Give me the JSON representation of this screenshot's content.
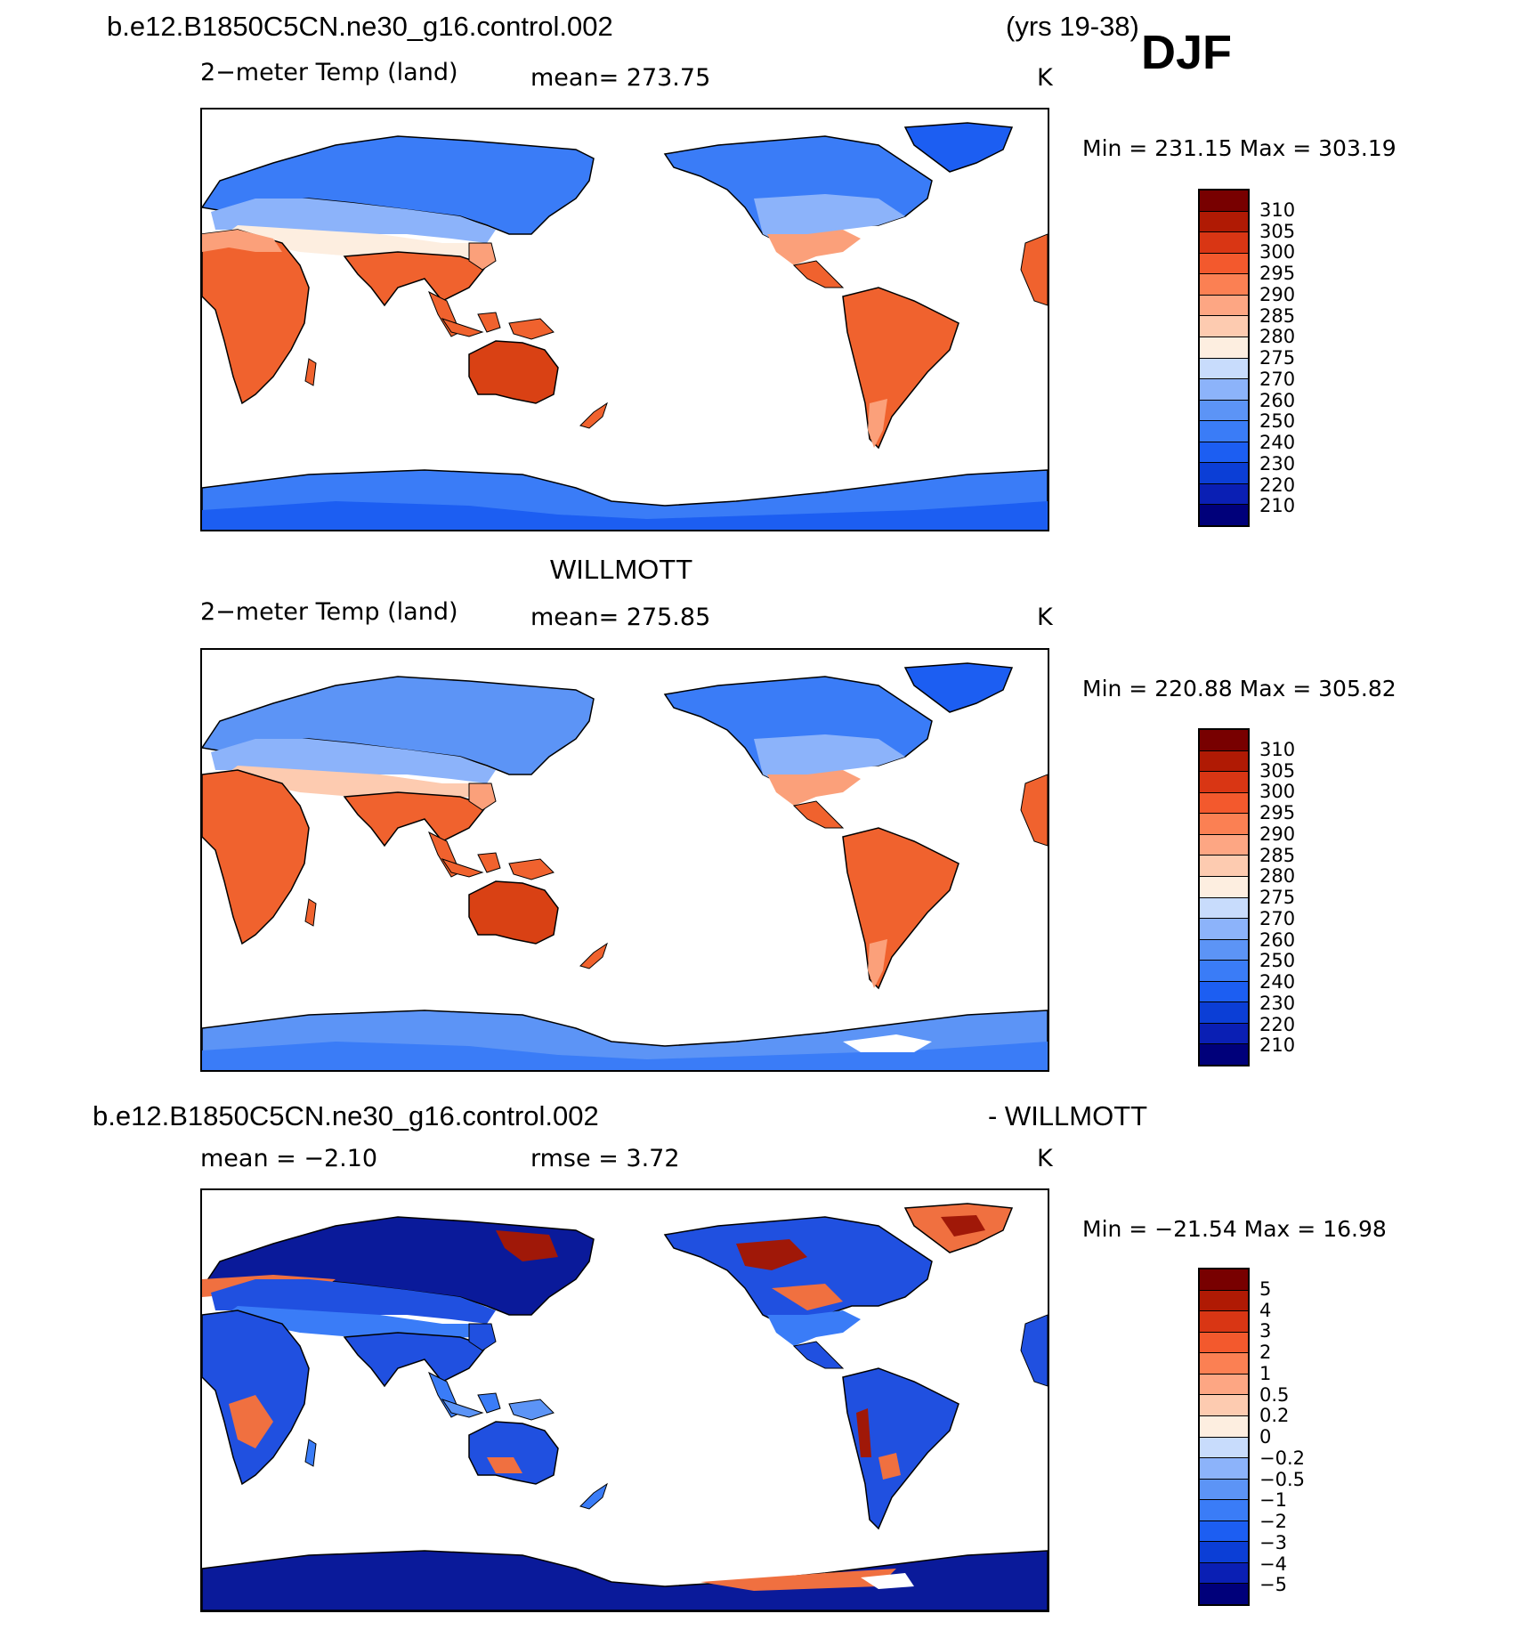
{
  "header": {
    "case_name": "b.e12.B1850C5CN.ne30_g16.control.002",
    "years": "(yrs 19-38)",
    "season": "DJF"
  },
  "panel1": {
    "variable": "2−meter Temp (land)",
    "mean": "mean=  273.75",
    "units": "K",
    "minmax": "Min  =  231.15  Max  =  303.19"
  },
  "panel2": {
    "title": "WILLMOTT",
    "variable": "2−meter Temp (land)",
    "mean": "mean=  275.85",
    "units": "K",
    "minmax": "Min  =  220.88  Max  =  305.82"
  },
  "panel3": {
    "case_name": "b.e12.B1850C5CN.ne30_g16.control.002",
    "minus_title": "- WILLMOTT",
    "mean": "mean  =    −2.10",
    "rmse": "rmse  =     3.72",
    "units": "K",
    "minmax": "Min  =  −21.54  Max  =    16.98"
  },
  "colorbar_temp": {
    "labels": [
      "210",
      "220",
      "230",
      "240",
      "250",
      "260",
      "270",
      "275",
      "280",
      "285",
      "290",
      "295",
      "300",
      "305",
      "310"
    ],
    "colors": [
      "#00007a",
      "#0a1fb4",
      "#0b3ed6",
      "#1c5ef2",
      "#3a7cf7",
      "#5c94f6",
      "#8cb3fa",
      "#c8dcfc",
      "#fdeee0",
      "#fdcbb0",
      "#fda683",
      "#fb8053",
      "#f3592d",
      "#d93614",
      "#b01a04",
      "#780000"
    ]
  },
  "colorbar_diff": {
    "labels": [
      "−5",
      "−4",
      "−3",
      "−2",
      "−1",
      "−0.5",
      "−0.2",
      "0",
      "0.2",
      "0.5",
      "1",
      "2",
      "3",
      "4",
      "5"
    ],
    "colors": [
      "#00007a",
      "#0a1fb4",
      "#0b3ed6",
      "#1c5ef2",
      "#3a7cf7",
      "#5c94f6",
      "#8cb3fa",
      "#c8dcfc",
      "#fdeee0",
      "#fdcbb0",
      "#fda683",
      "#fb8053",
      "#f3592d",
      "#d93614",
      "#b01a04",
      "#780000"
    ]
  },
  "colors": {
    "land_warm": "#f0622e",
    "land_hot": "#d94114",
    "land_mild": "#fba07a",
    "land_cool": "#8cb3fa",
    "land_cold": "#3a7cf7",
    "land_frozen": "#0b3ed6",
    "diff_neg": "#2050e0",
    "diff_deep": "#0a1a9a",
    "diff_pos": "#f07040",
    "diff_hot": "#a01808"
  }
}
